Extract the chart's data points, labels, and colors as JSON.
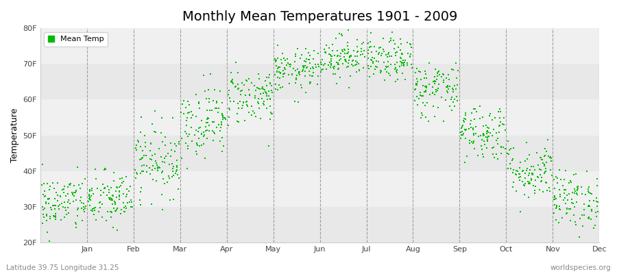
{
  "title": "Monthly Mean Temperatures 1901 - 2009",
  "ylabel": "Temperature",
  "xlabel_left": "Latitude 39.75 Longitude 31.25",
  "xlabel_right": "worldspecies.org",
  "legend_label": "Mean Temp",
  "ylim": [
    20,
    80
  ],
  "yticks": [
    20,
    30,
    40,
    50,
    60,
    70,
    80
  ],
  "ytick_labels": [
    "20F",
    "30F",
    "40F",
    "50F",
    "60F",
    "70F",
    "80F"
  ],
  "months": [
    "Jan",
    "Feb",
    "Mar",
    "Apr",
    "May",
    "Jun",
    "Jul",
    "Aug",
    "Sep",
    "Oct",
    "Nov",
    "Dec"
  ],
  "dot_color": "#00bb00",
  "bg_color": "#ffffff",
  "bg_band_light": "#f0f0f0",
  "bg_band_dark": "#e8e8e8",
  "title_fontsize": 14,
  "seed": 42,
  "monthly_mean_F": [
    31,
    32,
    43,
    54,
    61,
    68,
    72,
    71,
    63,
    51,
    40,
    32
  ],
  "monthly_std_F": [
    4,
    4,
    5,
    5,
    4,
    3,
    3,
    3,
    4,
    4,
    4,
    4
  ],
  "n_years": 109
}
